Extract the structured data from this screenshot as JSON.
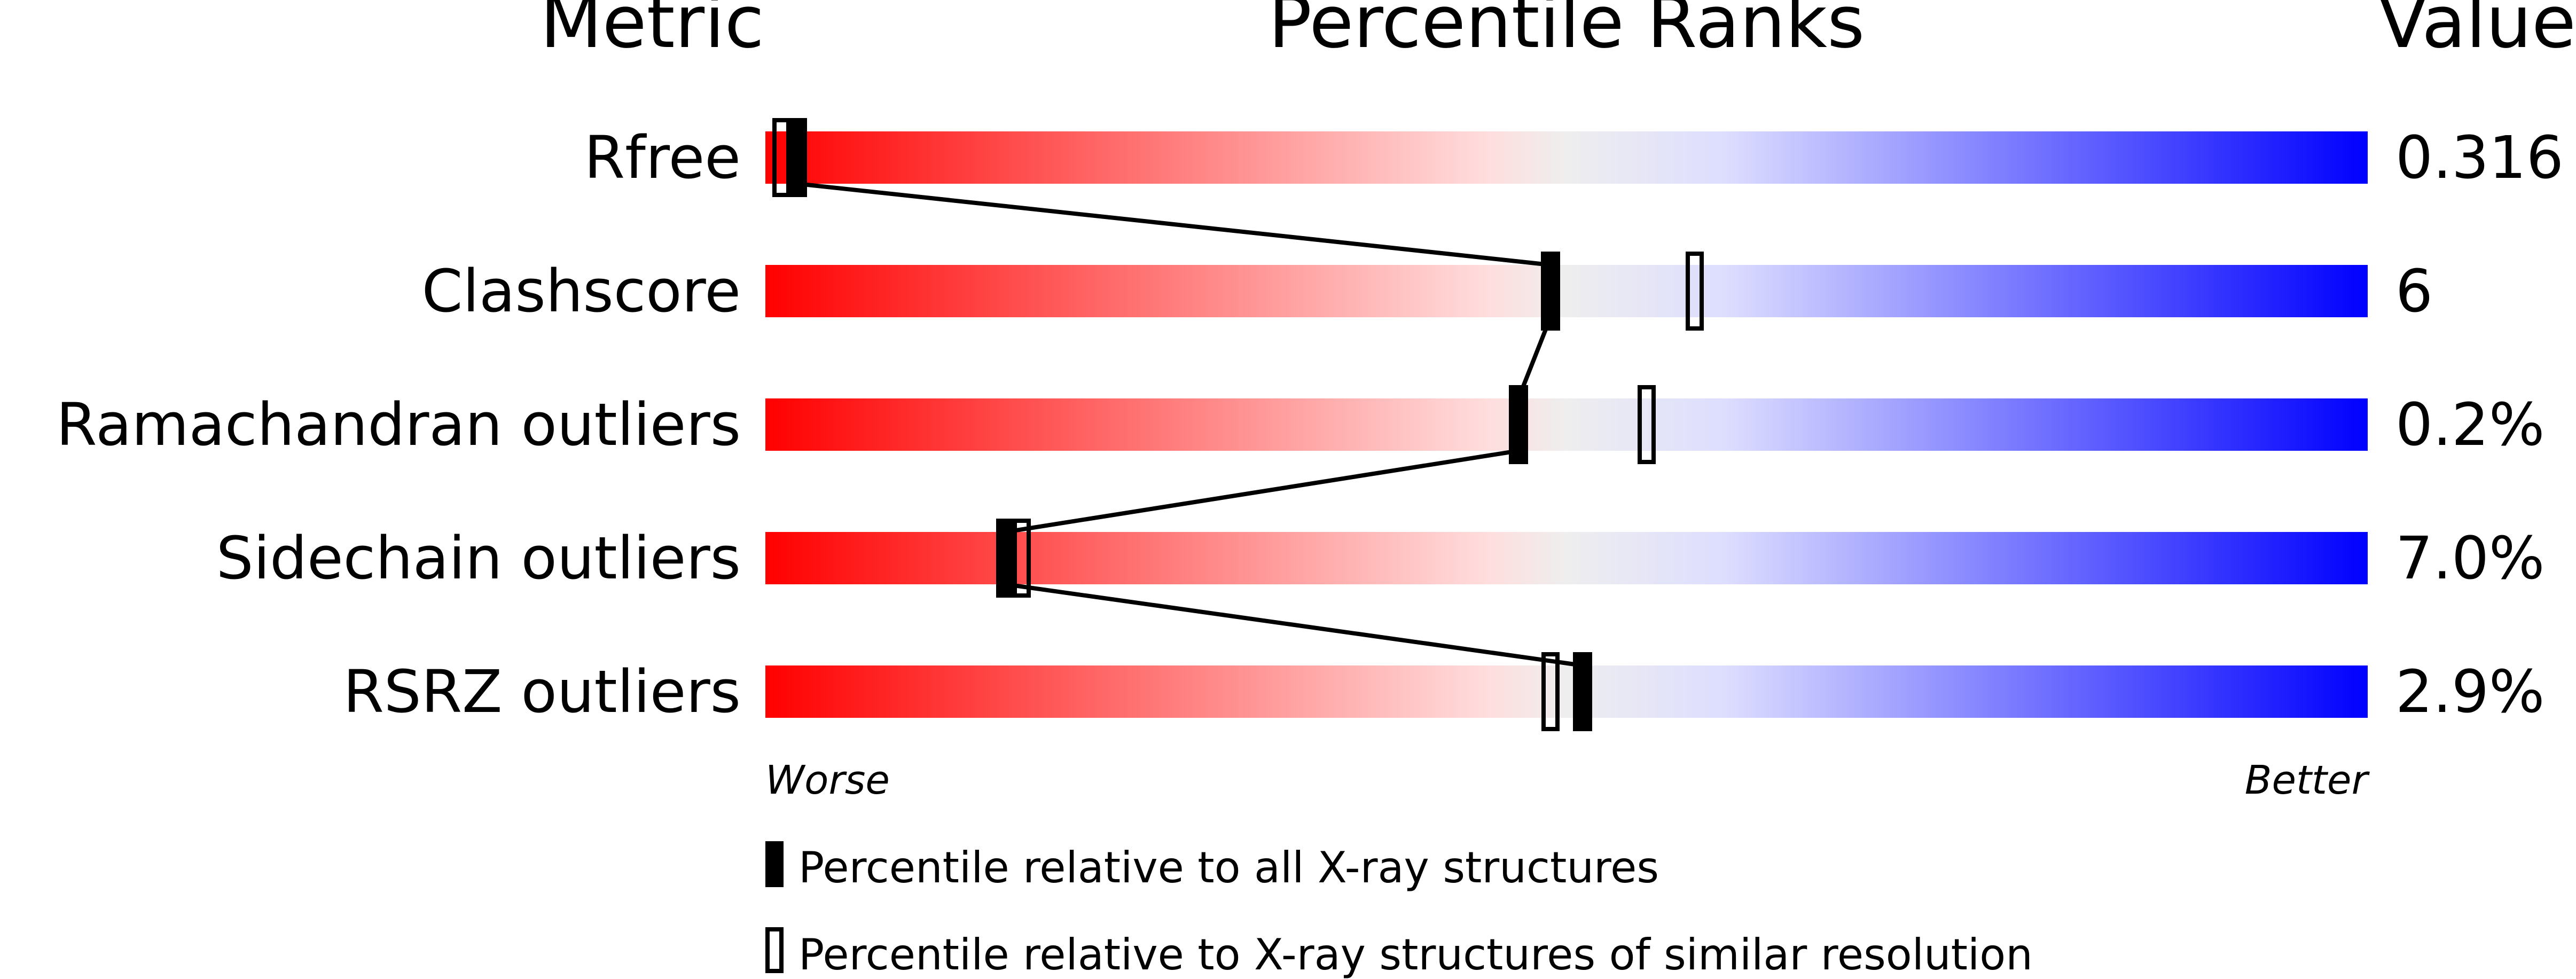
{
  "chart_data": {
    "type": "bar",
    "headers": {
      "metric": "Metric",
      "ranks": "Percentile Ranks",
      "value": "Value"
    },
    "xlim": [
      0,
      100
    ],
    "axis_labels": {
      "left": "Worse",
      "right": "Better"
    },
    "categories": [
      "Rfree",
      "Clashscore",
      "Ramachandran outliers",
      "Sidechain outliers",
      "RSRZ outliers"
    ],
    "values": [
      "0.316",
      "6",
      "0.2%",
      "7.0%",
      "2.9%"
    ],
    "series": [
      {
        "name": "Percentile relative to all X-ray structures",
        "values": [
          2,
          49,
          47,
          15,
          51
        ]
      },
      {
        "name": "Percentile relative to X-ray structures of similar resolution",
        "values": [
          1,
          58,
          55,
          16,
          49
        ]
      }
    ],
    "colors": {
      "worse": "#ff0000",
      "middle": "#eeeeee",
      "better": "#0000ff",
      "marker": "#000000"
    },
    "legend_placement": "bottom"
  }
}
